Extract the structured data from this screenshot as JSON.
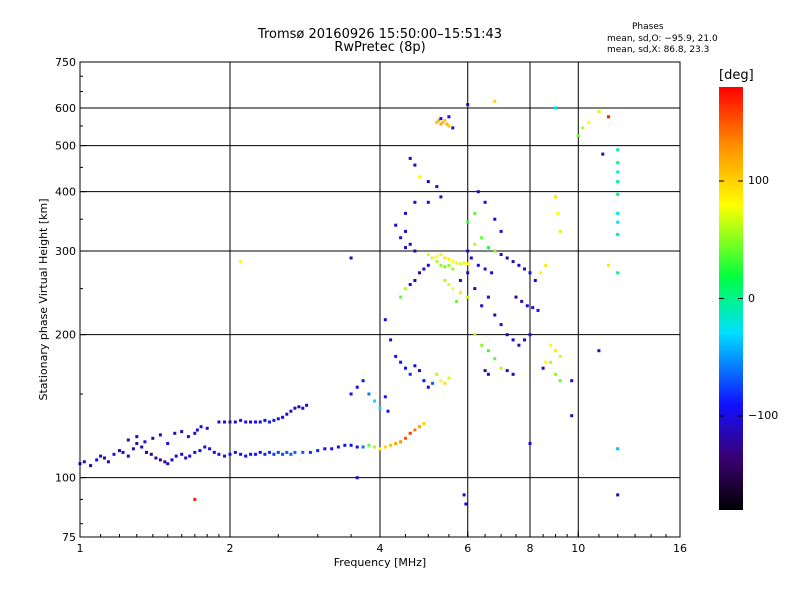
{
  "title": {
    "line1": "Tromsø 20160926 15:50:00–15:51:43",
    "line2": "RwPretec (8p)"
  },
  "phase_stats": {
    "heading": "Phases",
    "o_line": "mean, sd,O: −95.9, 21.0",
    "x_line": "mean, sd,X:  86.8, 23.3"
  },
  "colorbar": {
    "unit": "[deg]",
    "min": -180,
    "max": 180,
    "ticks": [
      {
        "value": 100,
        "label": "100"
      },
      {
        "value": 0,
        "label": "0"
      },
      {
        "value": -100,
        "label": "−100"
      }
    ]
  },
  "chart_data": {
    "type": "scatter",
    "title": "Tromsø 20160926 15:50:00–15:51:43",
    "subtitle": "RwPretec (8p)",
    "xlabel": "Frequency [MHz]",
    "ylabel": "Stationary phase Virtual Height [km]",
    "x_scale": "log",
    "y_scale": "log",
    "xlim": [
      1,
      16
    ],
    "ylim": [
      75,
      750
    ],
    "x_ticks": [
      1,
      2,
      4,
      6,
      8,
      10,
      16
    ],
    "x_tick_labels": [
      "1",
      "2",
      "4",
      "6",
      "8",
      "10",
      "16"
    ],
    "y_ticks": [
      75,
      100,
      200,
      300,
      400,
      500,
      600,
      750
    ],
    "y_tick_labels": [
      "75",
      "100",
      "200",
      "300",
      "400",
      "500",
      "600",
      "750"
    ],
    "grid": true,
    "color_variable": "phase [deg]",
    "color_range": [
      -180,
      180
    ],
    "points": [
      [
        1.0,
        107,
        -110
      ],
      [
        1.02,
        108,
        -115
      ],
      [
        1.05,
        106,
        -120
      ],
      [
        1.08,
        109,
        -105
      ],
      [
        1.1,
        111,
        -112
      ],
      [
        1.12,
        110,
        -118
      ],
      [
        1.14,
        108,
        -125
      ],
      [
        1.17,
        112,
        -100
      ],
      [
        1.2,
        114,
        -110
      ],
      [
        1.22,
        113,
        -120
      ],
      [
        1.25,
        111,
        -115
      ],
      [
        1.28,
        115,
        -108
      ],
      [
        1.3,
        118,
        -112
      ],
      [
        1.33,
        116,
        -122
      ],
      [
        1.36,
        113,
        -118
      ],
      [
        1.39,
        112,
        -125
      ],
      [
        1.42,
        110,
        -120
      ],
      [
        1.45,
        109,
        -130
      ],
      [
        1.48,
        108,
        -128
      ],
      [
        1.5,
        107,
        -120
      ],
      [
        1.53,
        109,
        -115
      ],
      [
        1.56,
        111,
        -112
      ],
      [
        1.6,
        112,
        -108
      ],
      [
        1.63,
        110,
        -110
      ],
      [
        1.66,
        111,
        -100
      ],
      [
        1.7,
        113,
        -95
      ],
      [
        1.74,
        114,
        -102
      ],
      [
        1.78,
        116,
        -98
      ],
      [
        1.82,
        115,
        -100
      ],
      [
        1.86,
        113,
        -95
      ],
      [
        1.9,
        112,
        -92
      ],
      [
        1.95,
        111,
        -96
      ],
      [
        2.0,
        112,
        -90
      ],
      [
        2.05,
        113,
        -94
      ],
      [
        2.1,
        112,
        -92
      ],
      [
        2.15,
        111,
        -95
      ],
      [
        2.2,
        112,
        -90
      ],
      [
        2.25,
        112,
        -88
      ],
      [
        2.3,
        113,
        -92
      ],
      [
        2.35,
        112,
        -85
      ],
      [
        2.4,
        113,
        -80
      ],
      [
        2.45,
        112,
        -78
      ],
      [
        2.5,
        113,
        -75
      ],
      [
        2.55,
        112,
        -72
      ],
      [
        2.6,
        113,
        -70
      ],
      [
        2.65,
        112,
        -68
      ],
      [
        2.7,
        113,
        -65
      ],
      [
        2.8,
        113,
        -70
      ],
      [
        2.9,
        113,
        -80
      ],
      [
        3.0,
        114,
        -85
      ],
      [
        3.1,
        115,
        -90
      ],
      [
        3.2,
        115,
        -95
      ],
      [
        3.3,
        116,
        -92
      ],
      [
        3.4,
        117,
        -90
      ],
      [
        3.5,
        117,
        -95
      ],
      [
        3.6,
        116,
        -100
      ],
      [
        3.7,
        116,
        -60
      ],
      [
        3.8,
        117,
        40
      ],
      [
        3.9,
        116,
        60
      ],
      [
        4.0,
        115,
        80
      ],
      [
        4.1,
        116,
        100
      ],
      [
        4.2,
        117,
        110
      ],
      [
        4.3,
        118,
        120
      ],
      [
        4.4,
        119,
        130
      ],
      [
        4.5,
        121,
        150
      ],
      [
        4.6,
        124,
        160
      ],
      [
        4.7,
        126,
        140
      ],
      [
        4.8,
        128,
        120
      ],
      [
        4.9,
        130,
        100
      ],
      [
        1.25,
        120,
        -120
      ],
      [
        1.3,
        122,
        -110
      ],
      [
        1.35,
        119,
        -105
      ],
      [
        1.4,
        121,
        -115
      ],
      [
        1.45,
        123,
        -110
      ],
      [
        1.5,
        118,
        -100
      ],
      [
        1.55,
        124,
        -112
      ],
      [
        1.6,
        125,
        -118
      ],
      [
        1.65,
        122,
        -108
      ],
      [
        1.7,
        124,
        -105
      ],
      [
        1.72,
        126,
        -100
      ],
      [
        1.75,
        128,
        -98
      ],
      [
        1.8,
        127,
        -110
      ],
      [
        1.9,
        131,
        -105
      ],
      [
        1.95,
        131,
        -110
      ],
      [
        2.0,
        131,
        -115
      ],
      [
        2.05,
        131,
        -108
      ],
      [
        2.1,
        132,
        -100
      ],
      [
        2.15,
        131,
        -105
      ],
      [
        2.2,
        131,
        -110
      ],
      [
        2.25,
        131,
        -95
      ],
      [
        2.3,
        131,
        -100
      ],
      [
        2.35,
        132,
        -90
      ],
      [
        2.4,
        131,
        -85
      ],
      [
        2.45,
        132,
        -88
      ],
      [
        2.5,
        133,
        -90
      ],
      [
        2.55,
        134,
        -95
      ],
      [
        2.6,
        136,
        -100
      ],
      [
        2.65,
        138,
        -105
      ],
      [
        2.7,
        140,
        -110
      ],
      [
        2.75,
        141,
        -115
      ],
      [
        2.8,
        140,
        -120
      ],
      [
        2.85,
        142,
        -112
      ],
      [
        3.5,
        150,
        -95
      ],
      [
        3.6,
        155,
        -100
      ],
      [
        3.7,
        160,
        -90
      ],
      [
        3.8,
        150,
        -60
      ],
      [
        3.9,
        145,
        -30
      ],
      [
        4.0,
        140,
        -20
      ],
      [
        4.1,
        148,
        -100
      ],
      [
        4.15,
        138,
        -90
      ],
      [
        4.1,
        215,
        -105
      ],
      [
        4.2,
        195,
        -110
      ],
      [
        4.3,
        180,
        -100
      ],
      [
        4.4,
        175,
        -95
      ],
      [
        4.5,
        170,
        -90
      ],
      [
        4.6,
        165,
        -80
      ],
      [
        4.7,
        172,
        -105
      ],
      [
        4.8,
        168,
        -110
      ],
      [
        4.9,
        160,
        -90
      ],
      [
        5.0,
        155,
        -100
      ],
      [
        5.1,
        158,
        -70
      ],
      [
        5.2,
        165,
        60
      ],
      [
        5.3,
        160,
        80
      ],
      [
        5.4,
        158,
        90
      ],
      [
        5.5,
        162,
        70
      ],
      [
        4.4,
        240,
        40
      ],
      [
        4.5,
        250,
        60
      ],
      [
        4.6,
        255,
        -110
      ],
      [
        4.7,
        260,
        -120
      ],
      [
        4.8,
        270,
        -115
      ],
      [
        4.9,
        275,
        -110
      ],
      [
        5.0,
        280,
        -100
      ],
      [
        5.1,
        290,
        -105
      ],
      [
        4.5,
        305,
        -110
      ],
      [
        4.6,
        310,
        -115
      ],
      [
        4.4,
        320,
        -110
      ],
      [
        4.5,
        330,
        -100
      ],
      [
        4.3,
        340,
        -105
      ],
      [
        4.7,
        300,
        -120
      ],
      [
        5.0,
        295,
        70
      ],
      [
        5.1,
        290,
        75
      ],
      [
        5.2,
        292,
        80
      ],
      [
        5.3,
        295,
        85
      ],
      [
        5.4,
        290,
        90
      ],
      [
        5.5,
        288,
        85
      ],
      [
        5.6,
        285,
        80
      ],
      [
        5.7,
        283,
        75
      ],
      [
        5.8,
        282,
        70
      ],
      [
        5.9,
        283,
        75
      ],
      [
        6.0,
        282,
        80
      ],
      [
        5.2,
        285,
        60
      ],
      [
        5.3,
        280,
        50
      ],
      [
        5.4,
        278,
        45
      ],
      [
        5.5,
        280,
        50
      ],
      [
        5.6,
        275,
        55
      ],
      [
        5.4,
        260,
        60
      ],
      [
        5.5,
        255,
        70
      ],
      [
        5.6,
        250,
        80
      ],
      [
        5.8,
        245,
        90
      ],
      [
        6.0,
        240,
        60
      ],
      [
        5.7,
        235,
        40
      ],
      [
        5.2,
        560,
        110
      ],
      [
        5.25,
        565,
        115
      ],
      [
        5.3,
        555,
        120
      ],
      [
        5.35,
        560,
        110
      ],
      [
        5.4,
        565,
        100
      ],
      [
        5.45,
        555,
        115
      ],
      [
        5.5,
        550,
        105
      ],
      [
        5.3,
        570,
        -100
      ],
      [
        5.5,
        575,
        -105
      ],
      [
        5.6,
        545,
        -110
      ],
      [
        4.6,
        470,
        -115
      ],
      [
        4.7,
        455,
        -110
      ],
      [
        4.8,
        430,
        80
      ],
      [
        5.0,
        420,
        -120
      ],
      [
        5.2,
        410,
        -110
      ],
      [
        4.5,
        360,
        -100
      ],
      [
        4.7,
        380,
        -105
      ],
      [
        5.0,
        380,
        -100
      ],
      [
        5.3,
        390,
        -110
      ],
      [
        5.8,
        260,
        -110
      ],
      [
        6.0,
        270,
        -115
      ],
      [
        6.2,
        250,
        -120
      ],
      [
        6.4,
        230,
        -110
      ],
      [
        6.6,
        240,
        -100
      ],
      [
        6.8,
        220,
        -110
      ],
      [
        7.0,
        210,
        -100
      ],
      [
        7.2,
        200,
        -120
      ],
      [
        7.4,
        195,
        -110
      ],
      [
        7.6,
        190,
        -115
      ],
      [
        7.8,
        195,
        -110
      ],
      [
        8.0,
        200,
        -100
      ],
      [
        6.2,
        200,
        60
      ],
      [
        6.4,
        190,
        50
      ],
      [
        6.6,
        185,
        30
      ],
      [
        6.8,
        178,
        40
      ],
      [
        7.0,
        170,
        60
      ],
      [
        7.2,
        168,
        -120
      ],
      [
        7.4,
        165,
        -115
      ],
      [
        6.5,
        168,
        -120
      ],
      [
        6.6,
        165,
        -110
      ],
      [
        6.2,
        310,
        60
      ],
      [
        6.4,
        320,
        40
      ],
      [
        6.6,
        305,
        20
      ],
      [
        6.8,
        300,
        50
      ],
      [
        7.0,
        295,
        -110
      ],
      [
        7.2,
        290,
        -115
      ],
      [
        7.4,
        285,
        -120
      ],
      [
        7.6,
        280,
        -100
      ],
      [
        7.8,
        275,
        -110
      ],
      [
        8.0,
        270,
        -105
      ],
      [
        8.2,
        260,
        -110
      ],
      [
        8.4,
        270,
        80
      ],
      [
        8.6,
        280,
        90
      ],
      [
        6.0,
        300,
        -105
      ],
      [
        6.1,
        290,
        -110
      ],
      [
        6.3,
        280,
        -100
      ],
      [
        6.5,
        275,
        -105
      ],
      [
        6.7,
        270,
        -110
      ],
      [
        7.5,
        240,
        -120
      ],
      [
        7.7,
        235,
        -115
      ],
      [
        7.9,
        230,
        -110
      ],
      [
        8.1,
        228,
        -100
      ],
      [
        8.3,
        225,
        -90
      ],
      [
        6.3,
        400,
        -110
      ],
      [
        6.5,
        380,
        -100
      ],
      [
        6.8,
        350,
        -110
      ],
      [
        7.0,
        330,
        -105
      ],
      [
        6.2,
        360,
        40
      ],
      [
        6.0,
        345,
        30
      ],
      [
        8.8,
        190,
        80
      ],
      [
        9.0,
        185,
        90
      ],
      [
        9.2,
        180,
        70
      ],
      [
        8.8,
        175,
        60
      ],
      [
        9.0,
        165,
        50
      ],
      [
        9.2,
        160,
        40
      ],
      [
        8.5,
        170,
        -110
      ],
      [
        8.6,
        175,
        80
      ],
      [
        9.0,
        390,
        90
      ],
      [
        9.1,
        360,
        80
      ],
      [
        9.2,
        330,
        70
      ],
      [
        10.0,
        525,
        40
      ],
      [
        10.2,
        545,
        60
      ],
      [
        10.5,
        560,
        80
      ],
      [
        11.0,
        590,
        70
      ],
      [
        11.5,
        575,
        170
      ],
      [
        12.0,
        490,
        -10
      ],
      [
        12.0,
        460,
        0
      ],
      [
        12.0,
        440,
        -20
      ],
      [
        12.0,
        420,
        -10
      ],
      [
        12.0,
        395,
        5
      ],
      [
        12.0,
        360,
        -20
      ],
      [
        12.0,
        345,
        -30
      ],
      [
        12.0,
        325,
        -10
      ],
      [
        12.0,
        270,
        0
      ],
      [
        12.0,
        115,
        -40
      ],
      [
        11.2,
        480,
        -120
      ],
      [
        11.0,
        185,
        -110
      ],
      [
        11.5,
        280,
        90
      ],
      [
        9.0,
        600,
        -30
      ],
      [
        6.8,
        620,
        100
      ],
      [
        6.0,
        610,
        -115
      ],
      [
        1.7,
        90,
        170
      ],
      [
        2.1,
        285,
        80
      ],
      [
        3.5,
        290,
        -120
      ],
      [
        3.6,
        100,
        -110
      ],
      [
        5.9,
        92,
        -110
      ],
      [
        5.95,
        88,
        -110
      ],
      [
        12.0,
        92,
        -115
      ],
      [
        8.0,
        118,
        -110
      ],
      [
        9.7,
        135,
        -120
      ],
      [
        9.7,
        160,
        -110
      ]
    ]
  }
}
